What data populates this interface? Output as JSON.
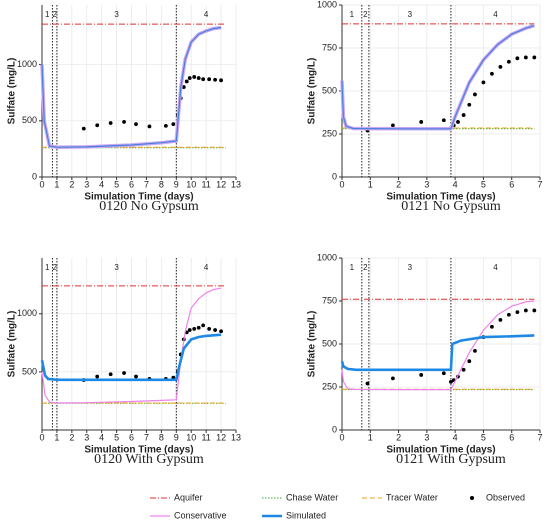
{
  "chart_data": [
    {
      "type": "line",
      "title": "0120 No Gypsum",
      "x_label": "Simulation Time (days)",
      "y_label": "Sulfate (mg/L)",
      "xlim": [
        0,
        13
      ],
      "xticks": [
        0,
        1,
        2,
        3,
        4,
        5,
        6,
        7,
        8,
        9,
        10,
        11,
        12,
        13
      ],
      "ylim": [
        0,
        1530
      ],
      "yticks": [
        0,
        500,
        1000
      ],
      "grid": true,
      "phase_lines": [
        0.7,
        1.0,
        9.0
      ],
      "phase_labels": [
        "1",
        "2",
        "3",
        "4"
      ],
      "series": [
        {
          "name": "Aquifer",
          "color": "#e03030",
          "style": "dashdot",
          "x": [
            0,
            12.3
          ],
          "values": [
            1360,
            1360
          ]
        },
        {
          "name": "Chase Water",
          "color": "#33aa33",
          "style": "dotted",
          "x": [
            0,
            12.3
          ],
          "values": [
            260,
            260
          ]
        },
        {
          "name": "Tracer Water",
          "color": "#f0a020",
          "style": "dashed",
          "x": [
            0,
            12.3
          ],
          "values": [
            265,
            265
          ]
        },
        {
          "name": "Observed",
          "color": "#000000",
          "style": "points",
          "x": [
            2.8,
            3.7,
            4.6,
            5.5,
            6.3,
            7.2,
            8.3,
            8.8,
            9.1,
            9.3,
            9.5,
            9.7,
            9.9,
            10.2,
            10.5,
            10.8,
            11.2,
            11.6,
            12
          ],
          "values": [
            430,
            460,
            480,
            490,
            470,
            450,
            455,
            470,
            550,
            700,
            800,
            850,
            880,
            890,
            880,
            870,
            870,
            865,
            860
          ]
        },
        {
          "name": "Conservative",
          "color": "#c8a8f0",
          "style": "wide",
          "x": [
            0,
            0.15,
            0.5,
            1,
            3,
            6,
            8,
            9,
            9.3,
            9.6,
            10,
            10.5,
            11,
            11.5,
            12
          ],
          "values": [
            1000,
            500,
            275,
            265,
            268,
            285,
            305,
            320,
            800,
            1050,
            1200,
            1270,
            1300,
            1320,
            1330
          ]
        },
        {
          "name": "Simulated",
          "color": "#4a7fe0",
          "style": "solid",
          "x": [
            0,
            0.15,
            0.5,
            1,
            3,
            6,
            8,
            9,
            9.3,
            9.6,
            10,
            10.5,
            11,
            11.5,
            12
          ],
          "values": [
            1000,
            500,
            275,
            265,
            268,
            285,
            305,
            320,
            800,
            1050,
            1200,
            1270,
            1300,
            1320,
            1330
          ]
        }
      ]
    },
    {
      "type": "line",
      "title": "0121 No Gypsum",
      "x_label": "Simulation Time (days)",
      "y_label": "Sulfate (mg/L)",
      "xlim": [
        0,
        7
      ],
      "xticks": [
        0,
        1,
        2,
        3,
        4,
        5,
        6,
        7
      ],
      "ylim": [
        0,
        1000
      ],
      "yticks": [
        0,
        250,
        500,
        750,
        1000
      ],
      "grid": true,
      "phase_lines": [
        0.7,
        0.95,
        3.85
      ],
      "phase_labels": [
        "1",
        "2",
        "3",
        "4"
      ],
      "series": [
        {
          "name": "Aquifer",
          "color": "#e03030",
          "style": "dashdot",
          "x": [
            0,
            6.8
          ],
          "values": [
            890,
            890
          ]
        },
        {
          "name": "Chase Water",
          "color": "#33aa33",
          "style": "dotted",
          "x": [
            0,
            6.8
          ],
          "values": [
            280,
            280
          ]
        },
        {
          "name": "Tracer Water",
          "color": "#f0a020",
          "style": "dashed",
          "x": [
            0,
            6.8
          ],
          "values": [
            285,
            285
          ]
        },
        {
          "name": "Observed",
          "color": "#000000",
          "style": "points",
          "x": [
            0.9,
            1.8,
            2.8,
            3.6,
            3.85,
            3.95,
            4.1,
            4.3,
            4.5,
            4.7,
            5.0,
            5.3,
            5.6,
            5.9,
            6.2,
            6.5,
            6.8
          ],
          "values": [
            270,
            300,
            320,
            330,
            285,
            300,
            320,
            360,
            420,
            480,
            550,
            600,
            640,
            670,
            690,
            695,
            695
          ]
        },
        {
          "name": "Conservative",
          "color": "#c8a8f0",
          "style": "wide",
          "x": [
            0,
            0.05,
            0.15,
            0.4,
            2,
            3.85,
            4.0,
            4.5,
            5,
            5.5,
            6,
            6.5,
            6.8
          ],
          "values": [
            560,
            350,
            295,
            282,
            280,
            280,
            350,
            550,
            680,
            770,
            830,
            865,
            880
          ]
        },
        {
          "name": "Simulated",
          "color": "#4a7fe0",
          "style": "solid",
          "x": [
            0,
            0.05,
            0.15,
            0.4,
            2,
            3.85,
            4.0,
            4.5,
            5,
            5.5,
            6,
            6.5,
            6.8
          ],
          "values": [
            560,
            350,
            295,
            282,
            280,
            280,
            350,
            550,
            680,
            770,
            830,
            865,
            880
          ]
        }
      ]
    },
    {
      "type": "line",
      "title": "0120 With Gypsum",
      "x_label": "Simulation Time (days)",
      "y_label": "Sulfate (mg/L)",
      "xlim": [
        0,
        13
      ],
      "xticks": [
        0,
        1,
        2,
        3,
        4,
        5,
        6,
        7,
        8,
        9,
        10,
        11,
        12,
        13
      ],
      "ylim": [
        0,
        1480
      ],
      "yticks": [
        500,
        1000
      ],
      "grid": true,
      "phase_lines": [
        0.7,
        1.0,
        9.0
      ],
      "phase_labels": [
        "1",
        "2",
        "3",
        "4"
      ],
      "series": [
        {
          "name": "Aquifer",
          "color": "#e03030",
          "style": "dashdot",
          "x": [
            0,
            12.3
          ],
          "values": [
            1240,
            1240
          ]
        },
        {
          "name": "Chase Water",
          "color": "#33aa33",
          "style": "dotted",
          "x": [
            0,
            12.3
          ],
          "values": [
            230,
            230
          ]
        },
        {
          "name": "Tracer Water",
          "color": "#f0a020",
          "style": "dashed",
          "x": [
            0,
            12.3
          ],
          "values": [
            232,
            232
          ]
        },
        {
          "name": "Observed",
          "color": "#000000",
          "style": "points",
          "x": [
            2.8,
            3.7,
            4.6,
            5.5,
            6.3,
            7.2,
            8.3,
            8.8,
            9.1,
            9.3,
            9.5,
            9.7,
            9.9,
            10.2,
            10.5,
            10.8,
            11.2,
            11.6,
            12
          ],
          "values": [
            430,
            460,
            480,
            490,
            460,
            440,
            440,
            450,
            500,
            650,
            780,
            840,
            860,
            870,
            880,
            900,
            870,
            860,
            850
          ]
        },
        {
          "name": "Conservative",
          "color": "#ee82ee",
          "style": "solid",
          "x": [
            0,
            0.2,
            0.5,
            1,
            3,
            6,
            8,
            9,
            9.3,
            9.6,
            10,
            10.5,
            11,
            11.5,
            12
          ],
          "values": [
            500,
            300,
            240,
            232,
            235,
            245,
            255,
            260,
            600,
            850,
            1050,
            1130,
            1180,
            1210,
            1220
          ]
        },
        {
          "name": "Simulated",
          "color": "#1e88e5",
          "style": "thick",
          "x": [
            0,
            0.2,
            0.4,
            1,
            3,
            6,
            8,
            9,
            9.2,
            9.5,
            10,
            10.5,
            11,
            11.5,
            12
          ],
          "values": [
            600,
            470,
            440,
            432,
            432,
            432,
            432,
            432,
            550,
            700,
            780,
            800,
            810,
            815,
            820
          ]
        }
      ]
    },
    {
      "type": "line",
      "title": "0121 With Gypsum",
      "x_label": "Simulation Time (days)",
      "y_label": "Sulfate (mg/L)",
      "xlim": [
        0,
        7
      ],
      "xticks": [
        0,
        1,
        2,
        3,
        4,
        5,
        6,
        7
      ],
      "ylim": [
        0,
        1000
      ],
      "yticks": [
        0,
        250,
        500,
        750,
        1000
      ],
      "grid": true,
      "phase_lines": [
        0.7,
        0.95,
        3.85
      ],
      "phase_labels": [
        "1",
        "2",
        "3",
        "4"
      ],
      "series": [
        {
          "name": "Aquifer",
          "color": "#e03030",
          "style": "dashdot",
          "x": [
            0,
            6.8
          ],
          "values": [
            760,
            760
          ]
        },
        {
          "name": "Chase Water",
          "color": "#33aa33",
          "style": "dotted",
          "x": [
            0,
            6.8
          ],
          "values": [
            235,
            235
          ]
        },
        {
          "name": "Tracer Water",
          "color": "#f0a020",
          "style": "dashed",
          "x": [
            0,
            6.8
          ],
          "values": [
            237,
            237
          ]
        },
        {
          "name": "Observed",
          "color": "#000000",
          "style": "points",
          "x": [
            0.9,
            1.8,
            2.8,
            3.6,
            3.85,
            3.95,
            4.1,
            4.3,
            4.5,
            4.7,
            5.0,
            5.3,
            5.6,
            5.9,
            6.2,
            6.5,
            6.8
          ],
          "values": [
            270,
            300,
            320,
            330,
            280,
            290,
            310,
            350,
            400,
            460,
            540,
            600,
            640,
            670,
            685,
            695,
            695
          ]
        },
        {
          "name": "Conservative",
          "color": "#ee82ee",
          "style": "solid",
          "x": [
            0,
            0.05,
            0.2,
            0.5,
            2,
            3.85,
            4.2,
            4.5,
            5,
            5.5,
            6,
            6.5,
            6.8
          ],
          "values": [
            350,
            280,
            240,
            236,
            235,
            235,
            350,
            450,
            580,
            670,
            720,
            745,
            750
          ]
        },
        {
          "name": "Simulated",
          "color": "#1e88e5",
          "style": "thick",
          "x": [
            0,
            0.05,
            0.2,
            0.5,
            2,
            3.85,
            3.9,
            4.2,
            5,
            6,
            6.8
          ],
          "values": [
            400,
            370,
            355,
            350,
            350,
            350,
            500,
            520,
            540,
            545,
            550
          ]
        }
      ]
    }
  ]
}
